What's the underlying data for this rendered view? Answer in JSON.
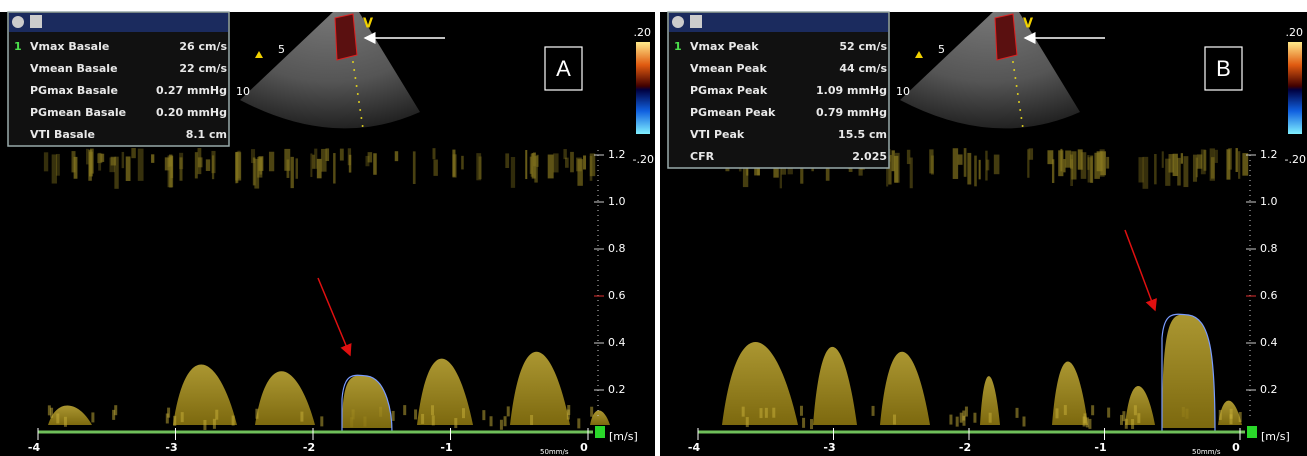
{
  "panels": [
    {
      "label": "A",
      "sector": {
        "marker": "V",
        "depths": [
          "5",
          "10"
        ]
      },
      "measurements": {
        "index": "1",
        "rows": [
          [
            "Vmax Basale",
            "26 cm/s"
          ],
          [
            "Vmean Basale",
            "22 cm/s"
          ],
          [
            "PGmax Basale",
            "0.27 mmHg"
          ],
          [
            "PGmean Basale",
            "0.20 mmHg"
          ],
          [
            "VTI Basale",
            "8.1 cm"
          ]
        ]
      },
      "color_scale": {
        "top": ".20",
        "bottom": "-.20"
      },
      "velocity_scale": {
        "ticks": [
          "1.2",
          "1.0",
          "0.8",
          "0.6",
          "0.4",
          "0.2"
        ],
        "unit": "[m/s]"
      },
      "time_axis": {
        "ticks": [
          "-4",
          "-3",
          "-2",
          "-1",
          "0"
        ],
        "speed": "50mm/s"
      }
    },
    {
      "label": "B",
      "sector": {
        "marker": "V",
        "depths": [
          "5",
          "10"
        ]
      },
      "measurements": {
        "index": "1",
        "rows": [
          [
            "Vmax Peak",
            "52 cm/s"
          ],
          [
            "Vmean Peak",
            "44 cm/s"
          ],
          [
            "PGmax Peak",
            "1.09 mmHg"
          ],
          [
            "PGmean Peak",
            "0.79 mmHg"
          ],
          [
            "VTI Peak",
            "15.5 cm"
          ],
          [
            "CFR",
            "2.025"
          ]
        ]
      },
      "color_scale": {
        "top": ".20",
        "bottom": "-.20"
      },
      "velocity_scale": {
        "ticks": [
          "1.2",
          "1.0",
          "0.8",
          "0.6",
          "0.4",
          "0.2"
        ],
        "unit": "[m/s]"
      },
      "time_axis": {
        "ticks": [
          "-4",
          "-3",
          "-2",
          "-1",
          "0"
        ],
        "speed": "50mm/s"
      }
    }
  ]
}
